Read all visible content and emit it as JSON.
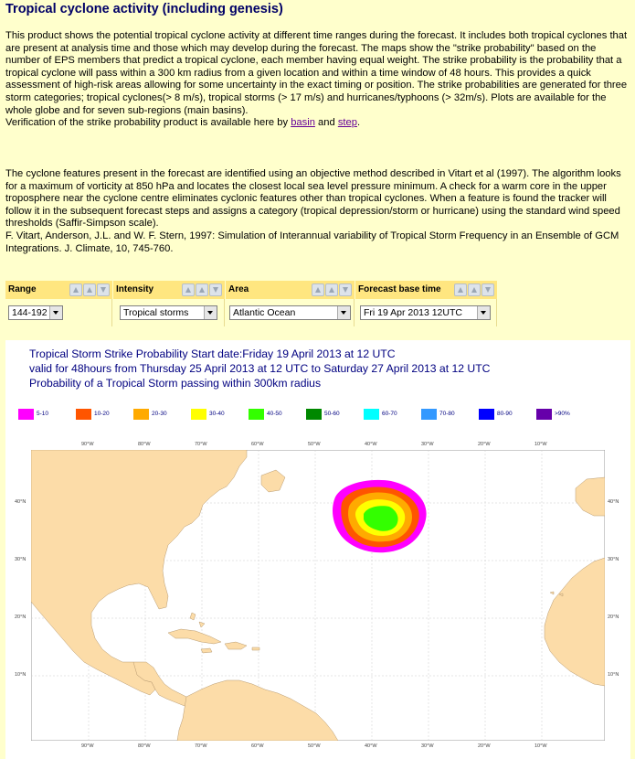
{
  "page": {
    "title": "Tropical cyclone activity (including genesis)",
    "para1_text": "This product shows the potential tropical cyclone activity at different time ranges during the forecast. It includes both tropical cyclones that are present at analysis time and those which may develop during the forecast. The maps show the \"strike probability\" based on the number of EPS members that predict a tropical cyclone, each member having equal weight. The strike probability is the probability that a tropical cyclone will pass within a 300 km radius from a given location and within a time window of 48 hours. This provides a quick assessment of high-risk areas allowing for some uncertainty in the exact timing or position. The strike probabilities are generated for three storm categories; tropical cyclones(> 8 m/s), tropical storms (> 17 m/s) and hurricanes/typhoons (> 32m/s). Plots are available for the whole globe and for seven sub-regions (main basins).",
    "verification_prefix": "Verification of the strike probability product is available here by ",
    "link_basin": "basin",
    "verification_and": " and ",
    "link_step": "step",
    "verification_suffix": ".",
    "para2_text": "The cyclone features present in the forecast are identified using an objective method described in Vitart et al (1997). The algorithm looks for a maximum of vorticity at 850 hPa and locates the closest local sea level pressure minimum. A check for a warm core in the upper troposphere near the cyclone centre eliminates cyclonic features other than tropical cyclones. When a feature is found the tracker will follow it in the subsequent forecast steps and assigns a category (tropical depression/storm or hurricane) using the standard wind speed thresholds (Saffir-Simpson scale).",
    "reference_text": "F. Vitart, Anderson, J.L. and W. F. Stern, 1997: Simulation of Interannual variability of Tropical Storm Frequency in an Ensemble of GCM Integrations. J. Climate, 10, 745-760."
  },
  "controls": {
    "range": {
      "label": "Range",
      "value": "144-192"
    },
    "intensity": {
      "label": "Intensity",
      "value": "Tropical storms"
    },
    "area": {
      "label": "Area",
      "value": "Atlantic Ocean"
    },
    "base_time": {
      "label": "Forecast base time",
      "value": "Fri 19 Apr 2013 12UTC"
    }
  },
  "figure": {
    "title_line1": "Tropical Storm Strike Probability Start date:Friday 19 April 2013 at 12 UTC",
    "title_line2": "valid for 48hours from Thursday 25 April 2013 at 12 UTC to  Saturday 27 April 2013 at 12 UTC",
    "title_line3": "Probability of a Tropical Storm passing within 300km radius",
    "legend": [
      {
        "label": "5-10",
        "color": "#ff00ff"
      },
      {
        "label": "10-20",
        "color": "#ff5500"
      },
      {
        "label": "20-30",
        "color": "#ffaa00"
      },
      {
        "label": "30-40",
        "color": "#ffff00"
      },
      {
        "label": "40-50",
        "color": "#33ff00"
      },
      {
        "label": "50-60",
        "color": "#008800"
      },
      {
        "label": "60-70",
        "color": "#00ffff"
      },
      {
        "label": "70-80",
        "color": "#3399ff"
      },
      {
        "label": "80-90",
        "color": "#0000ff"
      },
      {
        "label": ">90%",
        "color": "#6600aa"
      }
    ],
    "lon_labels": [
      "90°W",
      "80°W",
      "70°W",
      "60°W",
      "50°W",
      "40°W",
      "30°W",
      "20°W",
      "10°W"
    ],
    "lat_labels": [
      "40°N",
      "30°N",
      "20°N",
      "10°N"
    ],
    "land_color": "#fcdca8",
    "ocean_color": "#ffffff"
  }
}
